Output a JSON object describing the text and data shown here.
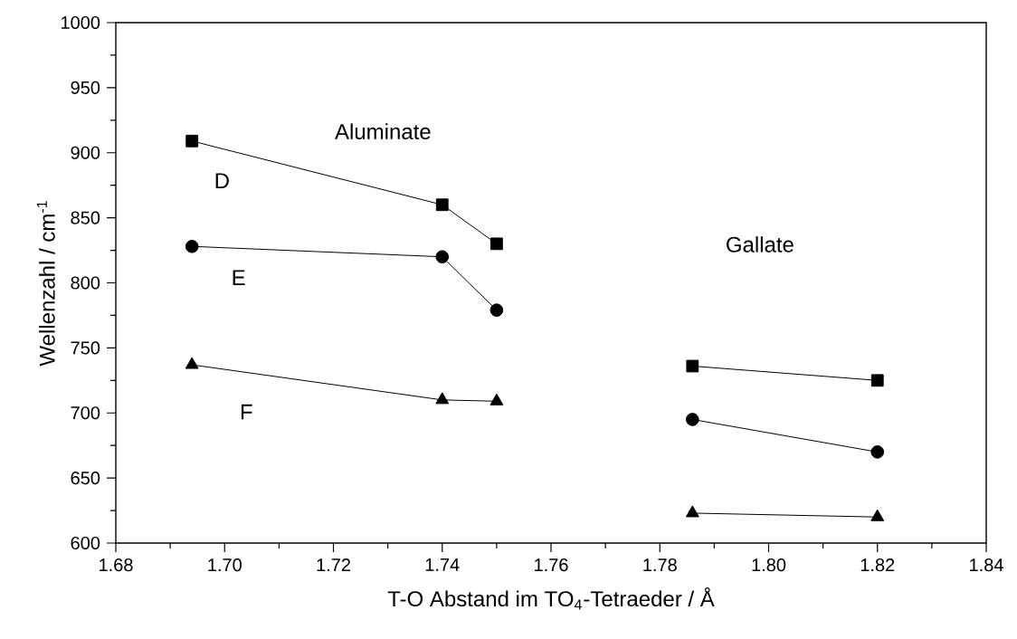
{
  "chart_data": {
    "type": "line",
    "xlabel": "T-O Abstand im TO$_{4}$-Tetraeder / Å",
    "ylabel": "Wellenzahl / cm$^{-1}$",
    "xlim": [
      1.68,
      1.84
    ],
    "xticks": [
      {
        "value": 1.68,
        "label": "1.68"
      },
      {
        "value": 1.7,
        "label": "1.70"
      },
      {
        "value": 1.72,
        "label": "1.72"
      },
      {
        "value": 1.74,
        "label": "1.74"
      },
      {
        "value": 1.76,
        "label": "1.76"
      },
      {
        "value": 1.78,
        "label": "1.78"
      },
      {
        "value": 1.8,
        "label": "1.80"
      },
      {
        "value": 1.82,
        "label": "1.82"
      },
      {
        "value": 1.84,
        "label": "1.84"
      }
    ],
    "ylim": [
      600,
      1000
    ],
    "yticks": [
      600,
      650,
      700,
      750,
      800,
      850,
      900,
      950,
      1000
    ],
    "grid": false,
    "line_style": "solid",
    "series": [
      {
        "color": "#000000",
        "marker": "square",
        "x": [
          1.694,
          1.74,
          1.75
        ],
        "values": [
          909,
          860,
          830
        ]
      },
      {
        "color": "#000000",
        "marker": "circle",
        "x": [
          1.694,
          1.74,
          1.75
        ],
        "values": [
          828,
          820,
          779
        ]
      },
      {
        "color": "#000000",
        "marker": "triangle",
        "x": [
          1.694,
          1.74,
          1.75
        ],
        "values": [
          737,
          710,
          709
        ]
      },
      {
        "color": "#000000",
        "marker": "square",
        "x": [
          1.786,
          1.82
        ],
        "values": [
          736,
          725
        ]
      },
      {
        "color": "#000000",
        "marker": "circle",
        "x": [
          1.786,
          1.82
        ],
        "values": [
          695,
          670
        ]
      },
      {
        "color": "#000000",
        "marker": "triangle",
        "x": [
          1.786,
          1.82
        ],
        "values": [
          623,
          620
        ]
      }
    ],
    "annotations": [
      "Aluminate",
      "D",
      "E",
      "F",
      "Gallate"
    ]
  }
}
